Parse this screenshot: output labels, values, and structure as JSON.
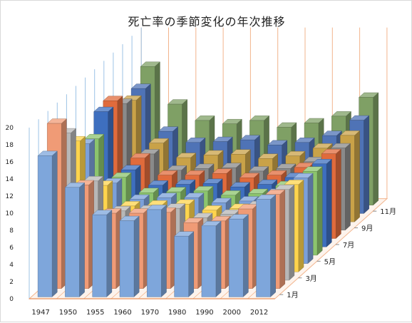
{
  "chart_data": {
    "type": "bar",
    "variant": "3d-column",
    "title": "死亡率の季節変化の年次推移",
    "categories": [
      "1947",
      "1950",
      "1955",
      "1960",
      "1970",
      "1980",
      "1990",
      "2000",
      "2012"
    ],
    "series_axis_labels": [
      "1月",
      "3月",
      "5月",
      "7月",
      "9月",
      "11月"
    ],
    "ylim": [
      0,
      20
    ],
    "yticks": [
      "0",
      "2",
      "4",
      "6",
      "8",
      "10",
      "12",
      "14",
      "16",
      "18",
      "20"
    ],
    "grid": true,
    "series": [
      {
        "month": 1,
        "color": "#7ea6db",
        "values": [
          16.5,
          12.8,
          9.6,
          8.9,
          10.2,
          7.1,
          8.3,
          9.1,
          11.4
        ]
      },
      {
        "month": 2,
        "color": "#f09b76",
        "values": [
          19.3,
          12.1,
          8.8,
          8.8,
          8.9,
          7.7,
          7.9,
          9.3,
          11.0
        ]
      },
      {
        "month": 3,
        "color": "#b7b7b7",
        "values": [
          17.2,
          11.6,
          8.1,
          8.2,
          8.4,
          7.3,
          7.7,
          8.7,
          10.6
        ]
      },
      {
        "month": 4,
        "color": "#ffd44d",
        "values": [
          15.3,
          10.1,
          7.7,
          7.8,
          7.9,
          7.2,
          7.4,
          8.3,
          10.2
        ]
      },
      {
        "month": 5,
        "color": "#7ba0d9",
        "values": [
          14.0,
          9.4,
          7.5,
          7.7,
          7.7,
          7.1,
          7.3,
          8.2,
          10.0
        ]
      },
      {
        "month": 6,
        "color": "#8cc46d",
        "values": [
          13.6,
          9.1,
          7.3,
          7.4,
          7.5,
          7.0,
          7.2,
          8.1,
          9.8
        ]
      },
      {
        "month": 7,
        "color": "#3e6fbf",
        "values": [
          15.8,
          9.0,
          7.2,
          7.3,
          7.4,
          7.0,
          7.3,
          8.1,
          9.7
        ]
      },
      {
        "month": 8,
        "color": "#e06b3c",
        "values": [
          16.1,
          9.4,
          7.4,
          7.4,
          7.6,
          7.1,
          7.4,
          8.3,
          9.9
        ]
      },
      {
        "month": 9,
        "color": "#8a8a8a",
        "values": [
          14.8,
          8.9,
          7.0,
          7.2,
          7.3,
          6.9,
          7.2,
          8.0,
          9.6
        ]
      },
      {
        "month": 10,
        "color": "#c9a248",
        "values": [
          14.2,
          9.2,
          7.5,
          7.8,
          7.9,
          7.4,
          7.7,
          8.6,
          10.1
        ]
      },
      {
        "month": 11,
        "color": "#4f73b6",
        "values": [
          14.6,
          9.6,
          8.3,
          8.4,
          8.6,
          8.0,
          8.3,
          9.1,
          10.9
        ]
      },
      {
        "month": 12,
        "color": "#7fa065",
        "values": [
          16.2,
          11.8,
          9.9,
          9.5,
          9.9,
          9.1,
          9.6,
          10.4,
          12.6
        ]
      }
    ]
  }
}
